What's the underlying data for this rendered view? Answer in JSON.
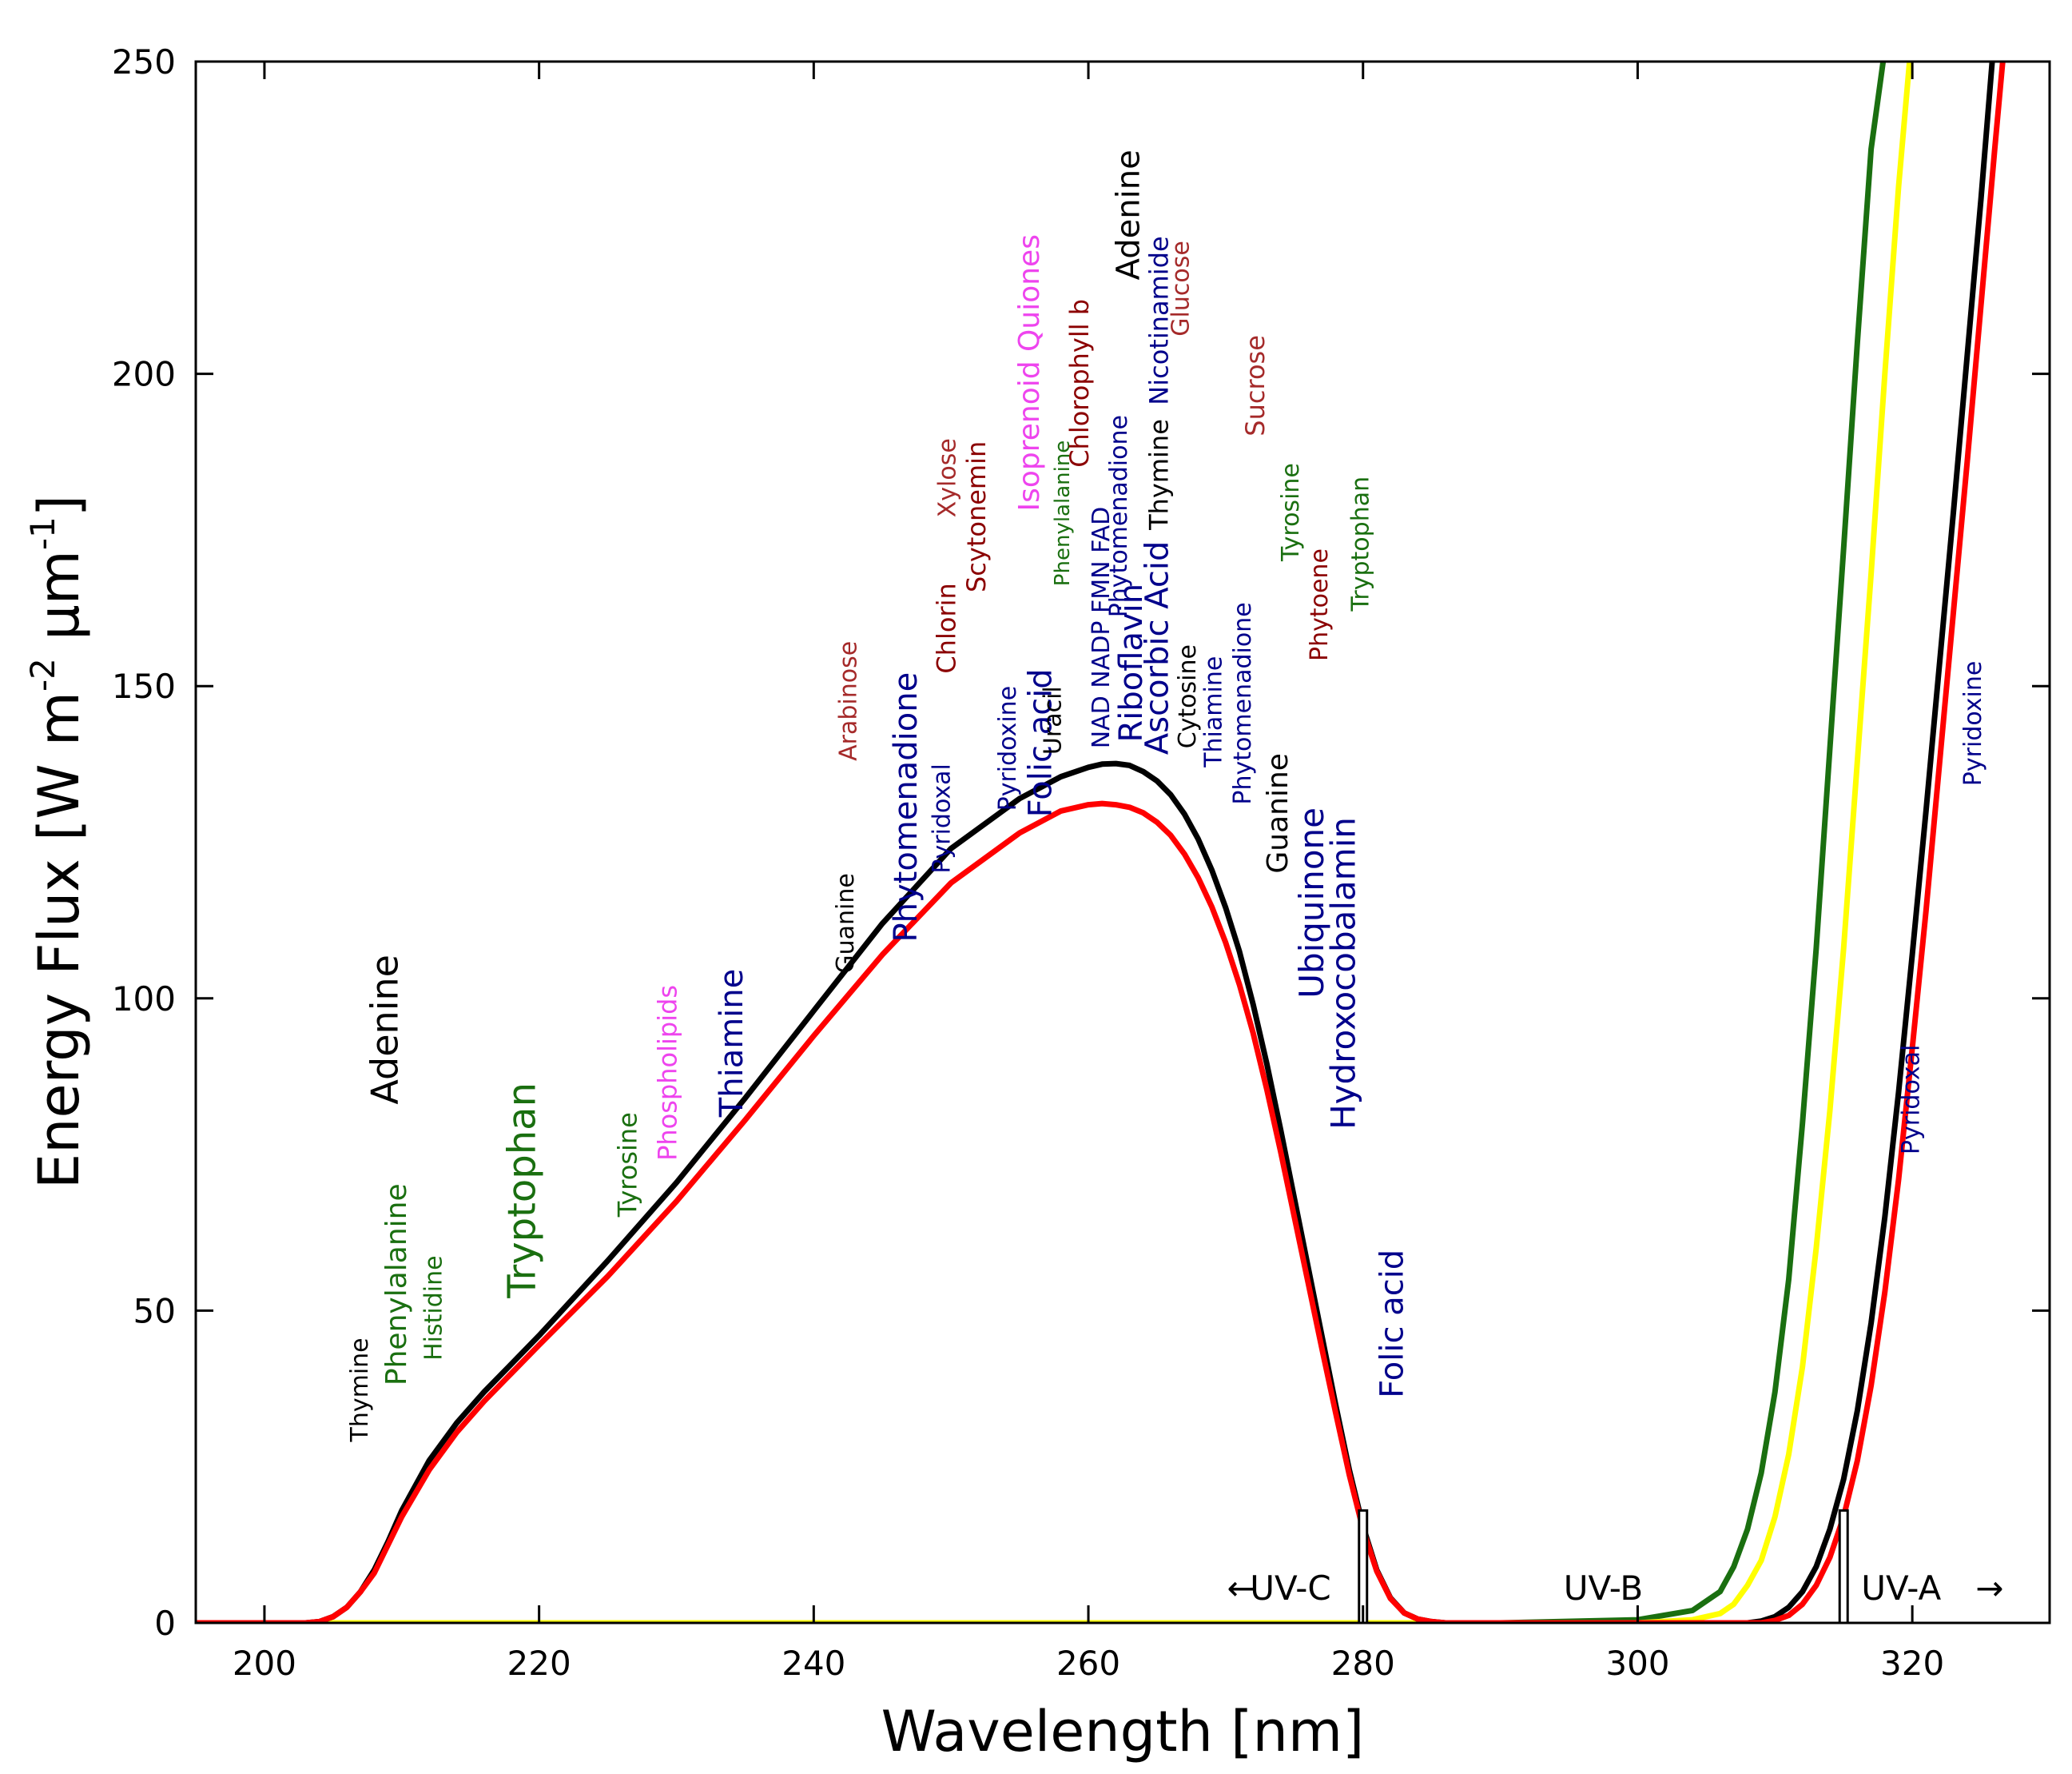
{
  "chart_data": {
    "type": "line",
    "xlabel": "Wavelength [nm]",
    "ylabel_parts": [
      "Energy Flux [W m",
      "-2",
      " µm",
      "-1",
      "]"
    ],
    "xlim": [
      195,
      330
    ],
    "ylim": [
      0,
      250
    ],
    "xticks": [
      200,
      220,
      240,
      260,
      280,
      300,
      320
    ],
    "yticks": [
      0,
      50,
      100,
      150,
      200,
      250
    ],
    "grid": false,
    "legend": "none",
    "series": [
      {
        "color": "#1a6f10",
        "x": [
          195,
          290,
          300,
          304,
          306,
          307,
          308,
          309,
          310,
          311,
          312,
          313,
          314,
          315,
          316,
          317,
          318
        ],
        "y": [
          0,
          0,
          0.5,
          2,
          5,
          9,
          15,
          24,
          37,
          55,
          80,
          108,
          140,
          172,
          205,
          236,
          252
        ]
      },
      {
        "color": "#ffff00",
        "x": [
          195,
          290,
          300,
          304,
          306,
          307,
          308,
          309,
          310,
          311,
          312,
          313,
          314,
          315,
          316,
          317,
          318,
          319,
          320
        ],
        "y": [
          0,
          0,
          0,
          0.5,
          1.5,
          3,
          6,
          10,
          17,
          27,
          41,
          60,
          82,
          108,
          138,
          168,
          200,
          230,
          255
        ]
      },
      {
        "color": "#000000",
        "x": [
          195,
          201,
          203,
          204,
          205,
          206,
          207,
          208,
          209,
          210,
          212,
          214,
          216,
          218,
          220,
          225,
          230,
          235,
          240,
          245,
          250,
          255,
          258,
          260,
          261,
          262,
          263,
          264,
          265,
          266,
          267,
          268,
          269,
          270,
          271,
          272,
          273,
          274,
          275,
          276,
          277,
          278,
          279,
          280,
          281,
          282,
          283,
          284,
          285,
          286,
          290,
          300,
          305,
          308,
          309,
          310,
          311,
          312,
          313,
          314,
          315,
          316,
          317,
          318,
          319,
          320,
          321,
          322,
          323,
          324,
          325,
          326
        ],
        "y": [
          0,
          0,
          0,
          0.2,
          1,
          2.5,
          5,
          8.5,
          13,
          18,
          26,
          32,
          37,
          41.5,
          46,
          58,
          70.5,
          84,
          98,
          112,
          124,
          132,
          135.5,
          137,
          137.5,
          137.6,
          137.3,
          136.3,
          134.8,
          132.6,
          129.5,
          125.5,
          120.5,
          114.5,
          107.5,
          99,
          89.5,
          79,
          68,
          57,
          46,
          35,
          24.5,
          15.5,
          8.5,
          4,
          1.6,
          0.6,
          0.2,
          0,
          0,
          0,
          0,
          0,
          0.3,
          1,
          2.5,
          5,
          9,
          15,
          23,
          34,
          48,
          65,
          85,
          107,
          130,
          154,
          178,
          203,
          228,
          255
        ]
      },
      {
        "color": "#ff0000",
        "x": [
          195,
          201,
          203,
          204,
          205,
          206,
          207,
          208,
          209,
          210,
          212,
          214,
          216,
          218,
          220,
          225,
          230,
          235,
          240,
          245,
          250,
          255,
          258,
          260,
          261,
          262,
          263,
          264,
          265,
          266,
          267,
          268,
          269,
          270,
          271,
          272,
          273,
          274,
          275,
          276,
          277,
          278,
          279,
          280,
          281,
          282,
          283,
          284,
          285,
          286,
          290,
          300,
          305,
          308,
          309,
          310,
          311,
          312,
          313,
          314,
          315,
          316,
          317,
          318,
          319,
          320,
          321,
          322,
          323,
          324,
          325,
          326,
          327
        ],
        "y": [
          0,
          0,
          0,
          0.2,
          1,
          2.5,
          5,
          8,
          12.5,
          17,
          24.5,
          30.5,
          35.5,
          40,
          44.5,
          55.5,
          67.5,
          80.5,
          94,
          107,
          118.5,
          126.5,
          130,
          131,
          131.2,
          131,
          130.6,
          129.7,
          128.2,
          126.1,
          123.1,
          119.3,
          114.6,
          108.9,
          102.2,
          94.4,
          85.4,
          75.5,
          65,
          54.5,
          44,
          33.7,
          23.7,
          15,
          8.3,
          3.9,
          1.6,
          0.6,
          0.2,
          0,
          0,
          0,
          0,
          0,
          0,
          0.4,
          1.2,
          3,
          6,
          10.5,
          17,
          26,
          38,
          53,
          71,
          92,
          114,
          138,
          162,
          186,
          211,
          236,
          260
        ]
      }
    ],
    "region_marks": [
      {
        "x": 280,
        "label": "UV-C",
        "arrow": "←"
      },
      {
        "x": 315,
        "label": "UV-A",
        "arrow": "→"
      }
    ],
    "region_mid_label": "UV-B",
    "annotations": [
      {
        "text": "Thymine",
        "x": 207.5,
        "y": 29,
        "color": "#000000",
        "size": 30
      },
      {
        "text": "Phenylalanine",
        "x": 210.3,
        "y": 38,
        "color": "#1a6f10",
        "size": 36
      },
      {
        "text": "Histidine",
        "x": 212.9,
        "y": 42,
        "color": "#1a6f10",
        "size": 30
      },
      {
        "text": "Adenine",
        "x": 209.7,
        "y": 83,
        "color": "#000000",
        "size": 46
      },
      {
        "text": "Tryptophan",
        "x": 219.7,
        "y": 52,
        "color": "#1a6f10",
        "size": 48
      },
      {
        "text": "Tyrosine",
        "x": 227.1,
        "y": 65,
        "color": "#1a6f10",
        "size": 32
      },
      {
        "text": "Phospholipids",
        "x": 230.0,
        "y": 74,
        "color": "#ee44ee",
        "size": 32
      },
      {
        "text": "Thiamine",
        "x": 234.8,
        "y": 81,
        "color": "#00008b",
        "size": 40
      },
      {
        "text": "Guanine",
        "x": 242.9,
        "y": 104,
        "color": "#000000",
        "size": 30
      },
      {
        "text": "Arabinose",
        "x": 243.1,
        "y": 138,
        "color": "#a52a2a",
        "size": 30
      },
      {
        "text": "Phytomenadione",
        "x": 247.5,
        "y": 109,
        "color": "#00008b",
        "size": 40
      },
      {
        "text": "Pyridoxal",
        "x": 249.9,
        "y": 120,
        "color": "#00008b",
        "size": 30
      },
      {
        "text": "Chlorin",
        "x": 250.3,
        "y": 152,
        "color": "#8b0000",
        "size": 32
      },
      {
        "text": "Xylose",
        "x": 250.3,
        "y": 177,
        "color": "#a52a2a",
        "size": 30
      },
      {
        "text": "Scytonemin",
        "x": 252.5,
        "y": 165,
        "color": "#8b0000",
        "size": 32
      },
      {
        "text": "Pyridoxine",
        "x": 254.7,
        "y": 130,
        "color": "#00008b",
        "size": 30
      },
      {
        "text": "Folic acid",
        "x": 257.3,
        "y": 129,
        "color": "#00008b",
        "size": 40
      },
      {
        "text": "Isoprenoid Quiones",
        "x": 256.4,
        "y": 178,
        "color": "#ee44ee",
        "size": 36
      },
      {
        "text": "Uracil",
        "x": 258.0,
        "y": 139,
        "color": "#000000",
        "size": 30
      },
      {
        "text": "Phenylalanine",
        "x": 258.6,
        "y": 166,
        "color": "#1a6f10",
        "size": 26
      },
      {
        "text": "Chlorophyll b",
        "x": 260.0,
        "y": 185,
        "color": "#8b0000",
        "size": 32
      },
      {
        "text": "NAD NADP FMN FAD",
        "x": 261.5,
        "y": 140,
        "color": "#00008b",
        "size": 30
      },
      {
        "text": "Phytomenadione",
        "x": 262.8,
        "y": 161,
        "color": "#00008b",
        "size": 30
      },
      {
        "text": "Riboflavin",
        "x": 263.9,
        "y": 141,
        "color": "#00008b",
        "size": 40
      },
      {
        "text": "Adenine",
        "x": 263.7,
        "y": 215,
        "color": "#000000",
        "size": 40
      },
      {
        "text": "Ascorbic Acid",
        "x": 265.8,
        "y": 139,
        "color": "#00008b",
        "size": 40
      },
      {
        "text": "Nicotinamide",
        "x": 265.8,
        "y": 195,
        "color": "#00008b",
        "size": 32
      },
      {
        "text": "Thymine",
        "x": 265.8,
        "y": 175,
        "color": "#000000",
        "size": 32
      },
      {
        "text": "Glucose",
        "x": 267.3,
        "y": 206,
        "color": "#a52a2a",
        "size": 30
      },
      {
        "text": "Cytosine",
        "x": 267.8,
        "y": 140,
        "color": "#000000",
        "size": 30
      },
      {
        "text": "Thiamine",
        "x": 269.7,
        "y": 137,
        "color": "#00008b",
        "size": 30
      },
      {
        "text": "Phytomenadione",
        "x": 271.8,
        "y": 131,
        "color": "#00008b",
        "size": 30
      },
      {
        "text": "Sucrose",
        "x": 272.8,
        "y": 190,
        "color": "#a52a2a",
        "size": 32
      },
      {
        "text": "Guanine",
        "x": 274.5,
        "y": 120,
        "color": "#000000",
        "size": 36
      },
      {
        "text": "Tyrosine",
        "x": 275.3,
        "y": 170,
        "color": "#1a6f10",
        "size": 30
      },
      {
        "text": "Ubiquinone",
        "x": 277.1,
        "y": 100,
        "color": "#00008b",
        "size": 42
      },
      {
        "text": "Phytoene",
        "x": 277.4,
        "y": 154,
        "color": "#8b0000",
        "size": 30
      },
      {
        "text": "Hydroxocobalamin",
        "x": 279.4,
        "y": 79,
        "color": "#00008b",
        "size": 42
      },
      {
        "text": "Tryptophan",
        "x": 280.4,
        "y": 162,
        "color": "#1a6f10",
        "size": 30
      },
      {
        "text": "Folic acid",
        "x": 282.9,
        "y": 36,
        "color": "#00008b",
        "size": 40
      },
      {
        "text": "Pyridoxal",
        "x": 320.5,
        "y": 75,
        "color": "#00008b",
        "size": 30
      },
      {
        "text": "Pyridoxine",
        "x": 325.0,
        "y": 134,
        "color": "#00008b",
        "size": 30
      }
    ]
  }
}
